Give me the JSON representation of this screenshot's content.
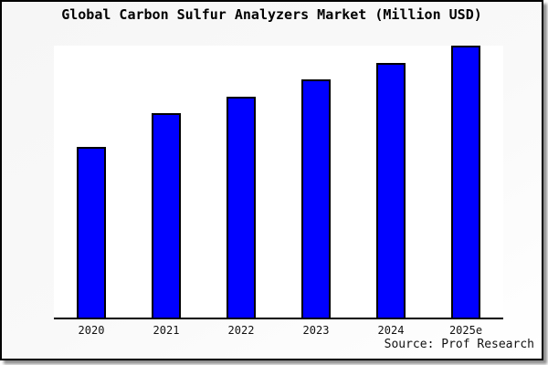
{
  "chart_data": {
    "type": "bar",
    "title": "Global Carbon Sulfur Analyzers Market (Million USD)",
    "categories": [
      "2020",
      "2021",
      "2022",
      "2023",
      "2024",
      "2025e"
    ],
    "values": [
      62.7,
      75.0,
      81.3,
      87.7,
      93.7,
      100.0
    ],
    "values_note": "no y-axis tick labels shown; values are relative bar heights with 2025e = 100",
    "xlabel": "",
    "ylabel": "",
    "ylim": [
      0,
      100
    ],
    "grid": false,
    "legend": "none",
    "bar_color": "#0000ff",
    "bar_border_color": "#000000",
    "plot_background": "#ffffff",
    "canvas_background": "#f7f7f7"
  },
  "source": {
    "label": "Source: Prof Research"
  }
}
